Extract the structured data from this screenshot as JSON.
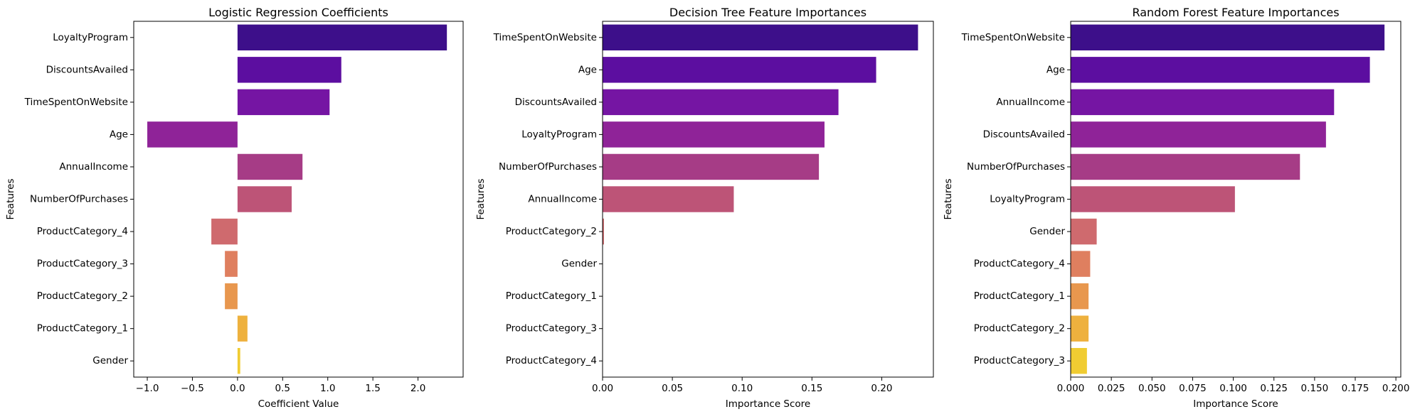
{
  "chart_data": [
    {
      "type": "bar",
      "orientation": "horizontal",
      "title": "Logistic Regression Coefficients",
      "xlabel": "Coefficient Value",
      "ylabel": "Features",
      "xlim": [
        -1.15,
        2.5
      ],
      "xticks": [
        -1.0,
        -0.5,
        0.0,
        0.5,
        1.0,
        1.5,
        2.0
      ],
      "xtick_labels": [
        "−1.0",
        "−0.5",
        "0.0",
        "0.5",
        "1.0",
        "1.5",
        "2.0"
      ],
      "categories": [
        "LoyaltyProgram",
        "DiscountsAvailed",
        "TimeSpentOnWebsite",
        "Age",
        "AnnualIncome",
        "NumberOfPurchases",
        "ProductCategory_4",
        "ProductCategory_3",
        "ProductCategory_2",
        "ProductCategory_1",
        "Gender"
      ],
      "values": [
        2.32,
        1.15,
        1.02,
        -1.0,
        0.72,
        0.6,
        -0.29,
        -0.14,
        -0.14,
        0.11,
        0.03
      ],
      "grid": false,
      "palette": [
        "#3d0f8a",
        "#5c0ea0",
        "#7515a3",
        "#8f2398",
        "#a63c86",
        "#bd5477",
        "#cf6a6e",
        "#df7f5f",
        "#e8974e",
        "#eeb13e",
        "#f0cc32"
      ]
    },
    {
      "type": "bar",
      "orientation": "horizontal",
      "title": "Decision Tree Feature Importances",
      "xlabel": "Importance Score",
      "ylabel": "Features",
      "xlim": [
        0,
        0.237
      ],
      "xticks": [
        0.0,
        0.05,
        0.1,
        0.15,
        0.2
      ],
      "xtick_labels": [
        "0.00",
        "0.05",
        "0.10",
        "0.15",
        "0.20"
      ],
      "categories": [
        "TimeSpentOnWebsite",
        "Age",
        "DiscountsAvailed",
        "LoyaltyProgram",
        "NumberOfPurchases",
        "AnnualIncome",
        "ProductCategory_2",
        "Gender",
        "ProductCategory_1",
        "ProductCategory_3",
        "ProductCategory_4"
      ],
      "values": [
        0.226,
        0.196,
        0.169,
        0.159,
        0.155,
        0.094,
        0.001,
        0,
        0,
        0,
        0
      ],
      "grid": false,
      "palette": [
        "#3d0f8a",
        "#5c0ea0",
        "#7515a3",
        "#8f2398",
        "#a63c86",
        "#bd5477",
        "#cf6a6e",
        "#df7f5f",
        "#e8974e",
        "#eeb13e",
        "#f0cc32"
      ]
    },
    {
      "type": "bar",
      "orientation": "horizontal",
      "title": "Random Forest Feature Importances",
      "xlabel": "Importance Score",
      "ylabel": "Features",
      "xlim": [
        0,
        0.203
      ],
      "xticks": [
        0.0,
        0.025,
        0.05,
        0.075,
        0.1,
        0.125,
        0.15,
        0.175,
        0.2
      ],
      "xtick_labels": [
        "0.000",
        "0.025",
        "0.050",
        "0.075",
        "0.100",
        "0.125",
        "0.150",
        "0.175",
        "0.200"
      ],
      "categories": [
        "TimeSpentOnWebsite",
        "Age",
        "AnnualIncome",
        "DiscountsAvailed",
        "NumberOfPurchases",
        "LoyaltyProgram",
        "Gender",
        "ProductCategory_4",
        "ProductCategory_1",
        "ProductCategory_2",
        "ProductCategory_3"
      ],
      "values": [
        0.193,
        0.184,
        0.162,
        0.157,
        0.141,
        0.101,
        0.016,
        0.012,
        0.011,
        0.011,
        0.01
      ],
      "grid": false,
      "palette": [
        "#3d0f8a",
        "#5c0ea0",
        "#7515a3",
        "#8f2398",
        "#a63c86",
        "#bd5477",
        "#cf6a6e",
        "#df7f5f",
        "#e8974e",
        "#eeb13e",
        "#f0cc32"
      ]
    }
  ]
}
